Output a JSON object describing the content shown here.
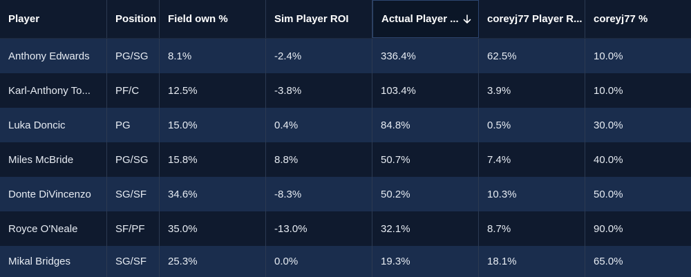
{
  "columns": [
    {
      "label": "Player"
    },
    {
      "label": "Position"
    },
    {
      "label": "Field own %"
    },
    {
      "label": "Sim Player ROI"
    },
    {
      "label": "Actual Player ..."
    },
    {
      "label": "coreyj77 Player R..."
    },
    {
      "label": "coreyj77 %"
    }
  ],
  "sort_icon": "arrow-down-icon",
  "rows": [
    {
      "player": "Anthony Edwards",
      "position": "PG/SG",
      "field_own": "8.1%",
      "sim_roi": "-2.4%",
      "actual_roi": "336.4%",
      "user_roi": "62.5%",
      "user_pct": "10.0%"
    },
    {
      "player": "Karl-Anthony To...",
      "position": "PF/C",
      "field_own": "12.5%",
      "sim_roi": "-3.8%",
      "actual_roi": "103.4%",
      "user_roi": "3.9%",
      "user_pct": "10.0%"
    },
    {
      "player": "Luka Doncic",
      "position": "PG",
      "field_own": "15.0%",
      "sim_roi": "0.4%",
      "actual_roi": "84.8%",
      "user_roi": "0.5%",
      "user_pct": "30.0%"
    },
    {
      "player": "Miles McBride",
      "position": "PG/SG",
      "field_own": "15.8%",
      "sim_roi": "8.8%",
      "actual_roi": "50.7%",
      "user_roi": "7.4%",
      "user_pct": "40.0%"
    },
    {
      "player": "Donte DiVincenzo",
      "position": "SG/SF",
      "field_own": "34.6%",
      "sim_roi": "-8.3%",
      "actual_roi": "50.2%",
      "user_roi": "10.3%",
      "user_pct": "50.0%"
    },
    {
      "player": "Royce O'Neale",
      "position": "SF/PF",
      "field_own": "35.0%",
      "sim_roi": "-13.0%",
      "actual_roi": "32.1%",
      "user_roi": "8.7%",
      "user_pct": "90.0%"
    },
    {
      "player": "Mikal Bridges",
      "position": "SG/SF",
      "field_own": "25.3%",
      "sim_roi": "0.0%",
      "actual_roi": "19.3%",
      "user_roi": "18.1%",
      "user_pct": "65.0%"
    }
  ]
}
